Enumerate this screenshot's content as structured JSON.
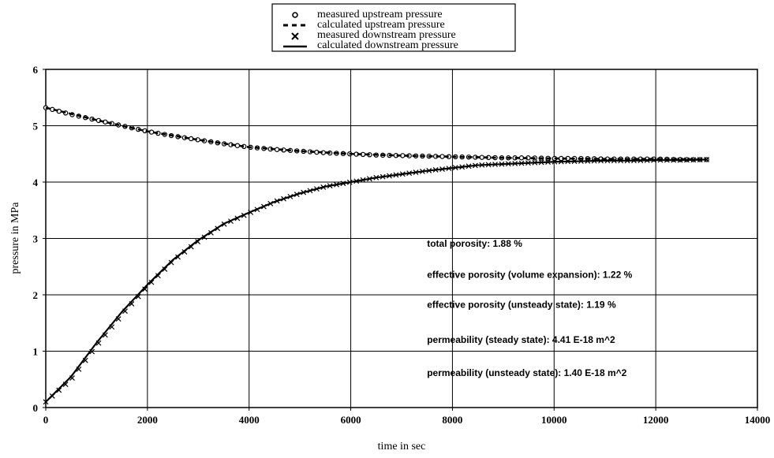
{
  "chart_data": {
    "type": "scatter",
    "title": "",
    "xlabel": "time in sec",
    "ylabel": "pressure in MPa",
    "xlim": [
      0,
      14000
    ],
    "ylim": [
      0,
      6
    ],
    "x_ticks": [
      "0",
      "2000",
      "4000",
      "6000",
      "8000",
      "10000",
      "12000",
      "14000"
    ],
    "y_ticks": [
      "0",
      "1",
      "2",
      "3",
      "4",
      "5",
      "6"
    ],
    "grid": true,
    "legend_position": "top-center",
    "legend": [
      {
        "label": "measured upstream pressure",
        "marker": "circle"
      },
      {
        "label": "calculated upstream pressure",
        "marker": "dashed-line"
      },
      {
        "label": "measured downstream pressure",
        "marker": "x"
      },
      {
        "label": "calculated downstream pressure",
        "marker": "solid-line"
      }
    ],
    "series": [
      {
        "name": "measured upstream pressure",
        "style": "circle",
        "x": [
          0,
          500,
          1000,
          1500,
          2000,
          2500,
          3000,
          3500,
          4000,
          4500,
          5000,
          5500,
          6000,
          6500,
          7000,
          7500,
          8000,
          8500,
          9000,
          9500,
          10000,
          10500,
          11000,
          11500,
          12000,
          12500,
          13000
        ],
        "y": [
          5.32,
          5.2,
          5.1,
          5.0,
          4.9,
          4.82,
          4.75,
          4.68,
          4.62,
          4.58,
          4.55,
          4.52,
          4.5,
          4.48,
          4.47,
          4.46,
          4.45,
          4.44,
          4.43,
          4.43,
          4.42,
          4.42,
          4.41,
          4.41,
          4.41,
          4.4,
          4.4
        ]
      },
      {
        "name": "calculated upstream pressure",
        "style": "dashed",
        "x": [
          0,
          1000,
          2000,
          3000,
          4000,
          5000,
          6000,
          7000,
          8000,
          9000,
          10000,
          11000,
          12000,
          13000
        ],
        "y": [
          5.32,
          5.1,
          4.9,
          4.75,
          4.62,
          4.55,
          4.5,
          4.47,
          4.45,
          4.43,
          4.42,
          4.41,
          4.41,
          4.4
        ]
      },
      {
        "name": "measured downstream pressure",
        "style": "x",
        "x": [
          0,
          500,
          1000,
          1500,
          2000,
          2500,
          3000,
          3500,
          4000,
          4500,
          5000,
          5500,
          6000,
          6500,
          7000,
          7500,
          8000,
          8500,
          9000,
          9500,
          10000,
          10500,
          11000,
          11500,
          12000,
          12500,
          13000
        ],
        "y": [
          0.1,
          0.5,
          1.1,
          1.65,
          2.15,
          2.6,
          2.95,
          3.25,
          3.45,
          3.65,
          3.8,
          3.92,
          4.0,
          4.08,
          4.14,
          4.2,
          4.25,
          4.3,
          4.32,
          4.34,
          4.36,
          4.37,
          4.38,
          4.38,
          4.39,
          4.39,
          4.4
        ]
      },
      {
        "name": "calculated downstream pressure",
        "style": "solid",
        "x": [
          0,
          500,
          1000,
          1500,
          2000,
          2500,
          3000,
          3500,
          4000,
          4500,
          5000,
          5500,
          6000,
          6500,
          7000,
          7500,
          8000,
          8500,
          9000,
          9500,
          10000,
          10500,
          11000,
          11500,
          12000,
          12500,
          13000
        ],
        "y": [
          0.1,
          0.55,
          1.15,
          1.7,
          2.18,
          2.62,
          2.97,
          3.26,
          3.46,
          3.65,
          3.8,
          3.92,
          4.0,
          4.08,
          4.14,
          4.2,
          4.25,
          4.3,
          4.32,
          4.34,
          4.36,
          4.37,
          4.38,
          4.38,
          4.39,
          4.39,
          4.4
        ]
      }
    ],
    "annotations": [
      {
        "text": "total porosity: 1.88 %",
        "x": 7500,
        "y": 2.85
      },
      {
        "text": "effective porosity (volume expansion): 1.22 %",
        "x": 7500,
        "y": 2.3
      },
      {
        "text": "effective porosity (unsteady state): 1.19 %",
        "x": 7500,
        "y": 1.77
      },
      {
        "text": "permeability (steady state): 4.41 E-18 m^2",
        "x": 7500,
        "y": 1.15
      },
      {
        "text": "permeability (unsteady state): 1.40 E-18 m^2",
        "x": 7500,
        "y": 0.56
      }
    ]
  }
}
